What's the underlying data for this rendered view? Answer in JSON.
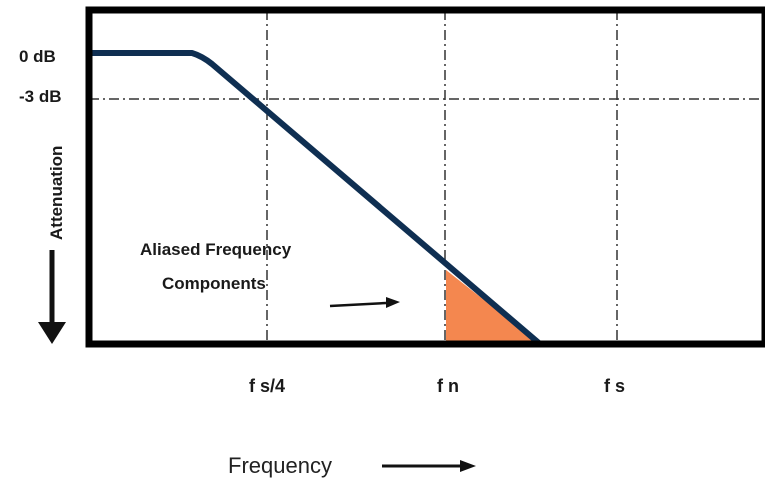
{
  "chart_data": {
    "type": "line",
    "title": "",
    "xlabel": "Frequency",
    "ylabel": "Attenuation",
    "x_ticks": [
      "f s/4",
      "f n",
      "f s"
    ],
    "y_ticks": [
      "0 dB",
      "-3 dB"
    ],
    "annotation": [
      "Aliased Frequency",
      "Components"
    ],
    "grid": true,
    "colors": {
      "curve": "#0f2f52",
      "aliased_area": "#f4874f",
      "frame": "#000000",
      "grid": "#333333"
    }
  }
}
